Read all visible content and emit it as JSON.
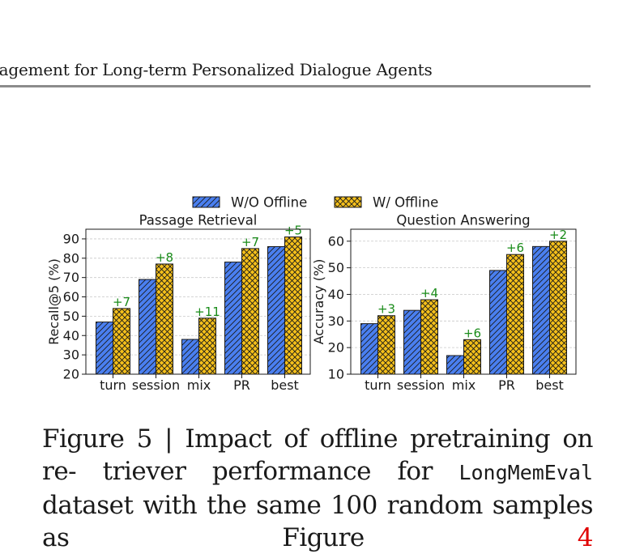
{
  "header": {
    "running_title": "nagement for Long-term Personalized Dialogue Agents"
  },
  "legend": [
    {
      "label": "W/O Offline",
      "color": "#4a7ff0",
      "hatch": "diagonal"
    },
    {
      "label": "W/ Offline",
      "color": "#f5c01a",
      "hatch": "crosshatch"
    }
  ],
  "chart_data": [
    {
      "type": "bar",
      "title": "Passage Retrieval",
      "ylabel": "Recall@5 (%)",
      "xlabel": "",
      "categories": [
        "turn",
        "session",
        "mix",
        "PR",
        "best"
      ],
      "series": [
        {
          "name": "W/O Offline",
          "values": [
            47,
            69,
            38,
            78,
            86
          ]
        },
        {
          "name": "W/ Offline",
          "values": [
            54,
            77,
            49,
            85,
            91
          ]
        }
      ],
      "annotations": [
        "+7",
        "+8",
        "+11",
        "+7",
        "+5"
      ],
      "ylim": [
        20,
        95
      ],
      "yticks": [
        20,
        30,
        40,
        50,
        60,
        70,
        80,
        90
      ],
      "grid": true,
      "legend": "top-center"
    },
    {
      "type": "bar",
      "title": "Question Answering",
      "ylabel": "Accuracy (%)",
      "xlabel": "",
      "categories": [
        "turn",
        "session",
        "mix",
        "PR",
        "best"
      ],
      "series": [
        {
          "name": "W/O Offline",
          "values": [
            29,
            34,
            17,
            49,
            58
          ]
        },
        {
          "name": "W/ Offline",
          "values": [
            32,
            38,
            23,
            55,
            60
          ]
        }
      ],
      "annotations": [
        "+3",
        "+4",
        "+6",
        "+6",
        "+2"
      ],
      "ylim": [
        10,
        64.5
      ],
      "yticks": [
        10,
        20,
        30,
        40,
        50,
        60
      ],
      "grid": true,
      "legend": "top-center"
    }
  ],
  "caption": {
    "part1": "Figure 5 | Impact of offline pretraining on re-",
    "part2": "triever performance for ",
    "mono": "LongMemEval",
    "part3": " dataset",
    "part4": "with the same 100 random samples as Figure ",
    "ref": "4"
  },
  "colors": {
    "annotation": "#1a8c1a",
    "grid": "#c8c8c8",
    "rule": "#8c8c8c",
    "ref": "#e00000"
  }
}
